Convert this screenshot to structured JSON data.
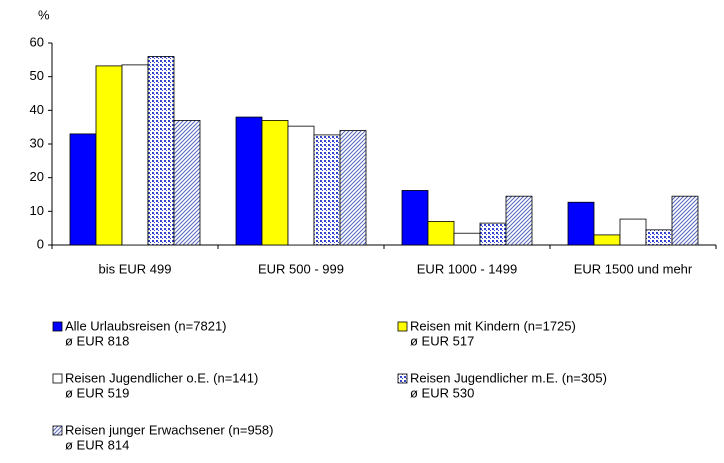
{
  "chart_data": {
    "type": "bar",
    "y_axis_label": "%",
    "categories": [
      "bis EUR 499",
      "EUR 500 - 999",
      "EUR 1000 - 1499",
      "EUR 1500 und mehr"
    ],
    "series": [
      {
        "name": "Alle Urlaubsreisen (n=7821)",
        "note": "ø EUR 818",
        "color": "#0000ff",
        "pattern": "solid",
        "values": [
          33,
          38,
          16.2,
          12.7
        ]
      },
      {
        "name": "Reisen mit Kindern (n=1725)",
        "note": "ø EUR 517",
        "color": "#ffff00",
        "pattern": "solid",
        "values": [
          53.2,
          37,
          7,
          3
        ]
      },
      {
        "name": "Reisen Jugendlicher o.E. (n=141)",
        "note": "ø EUR 519",
        "color": "#ffffff",
        "pattern": "solid",
        "values": [
          53.5,
          35.3,
          3.5,
          7.7
        ]
      },
      {
        "name": "Reisen Jugendlicher m.E. (n=305)",
        "note": "ø EUR 530",
        "color": "#3344cc",
        "pattern": "checker",
        "values": [
          56,
          32.7,
          6.5,
          4.5
        ]
      },
      {
        "name": "Reisen junger Erwachsener (n=958)",
        "note": "ø EUR 814",
        "color": "#5566bb",
        "pattern": "hatch",
        "values": [
          37,
          34,
          14.5,
          14.5
        ]
      }
    ],
    "ylim": [
      0,
      60
    ],
    "yticks": [
      0,
      10,
      20,
      30,
      40,
      50,
      60
    ]
  }
}
